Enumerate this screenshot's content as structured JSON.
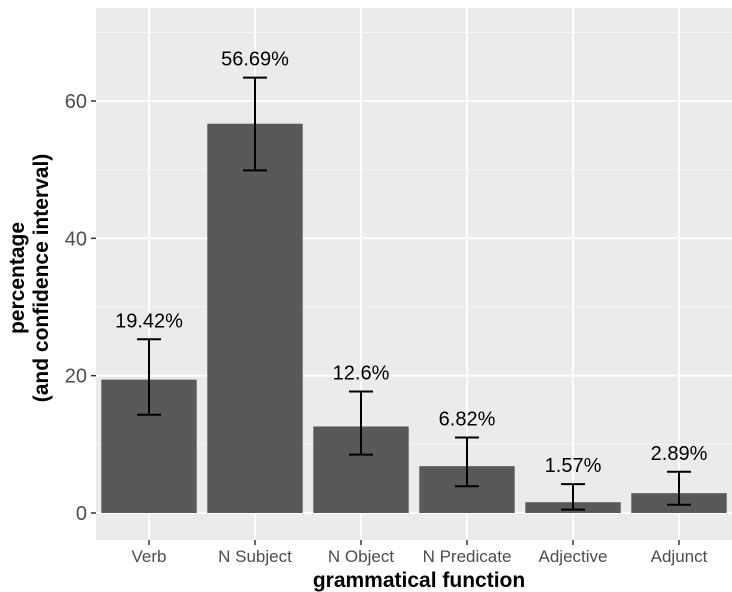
{
  "chart_data": {
    "type": "bar",
    "categories": [
      "Verb",
      "N Subject",
      "N Object",
      "N Predicate",
      "Adjective",
      "Adjunct"
    ],
    "values": [
      19.42,
      56.69,
      12.6,
      6.82,
      1.57,
      2.89
    ],
    "value_labels": [
      "19.42%",
      "56.69%",
      "12.6%",
      "6.82%",
      "1.57%",
      "2.89%"
    ],
    "ci_low": [
      14.3,
      49.9,
      8.5,
      3.9,
      0.5,
      1.2
    ],
    "ci_high": [
      25.3,
      63.4,
      17.7,
      11.0,
      4.2,
      6.0
    ],
    "xlabel": "grammatical function",
    "ylabel_line1": "percentage",
    "ylabel_line2": "(and confidence interval)",
    "ylim": [
      0,
      72
    ],
    "yticks": [
      0,
      20,
      40,
      60
    ],
    "grid": true,
    "legend": "none",
    "colors": {
      "bar": "#595959",
      "panel": "#ebebeb",
      "grid_major": "#ffffff",
      "error_bar": "#000000"
    }
  }
}
